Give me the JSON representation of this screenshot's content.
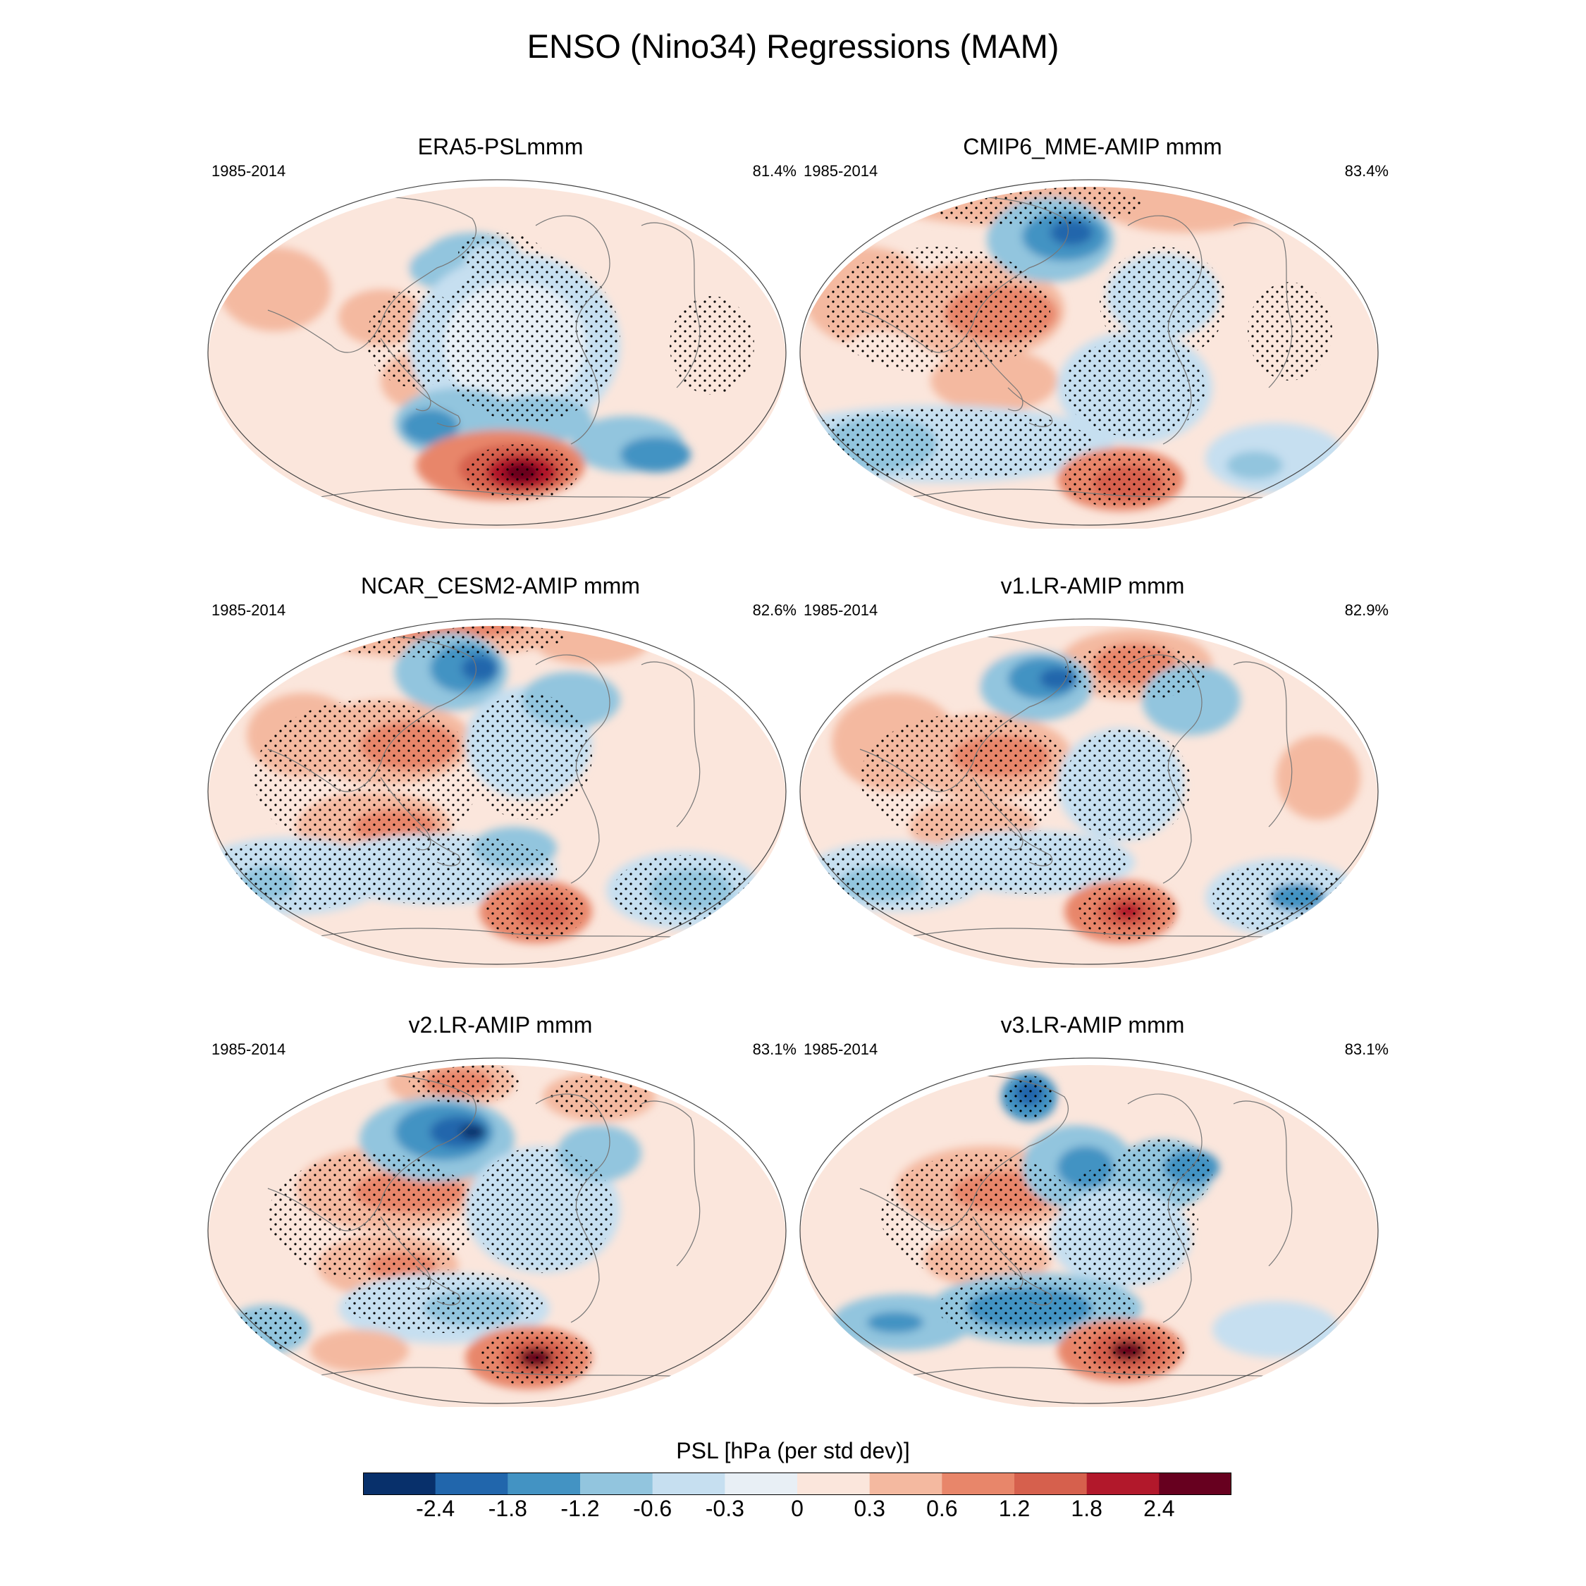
{
  "title": "ENSO (Nino34) Regressions (MAM)",
  "panels": [
    {
      "title": "ERA5-PSLmmm",
      "years": "1985-2014",
      "pct": "81.4%"
    },
    {
      "title": "CMIP6_MME-AMIP  mmm",
      "years": "1985-2014",
      "pct": "83.4%"
    },
    {
      "title": "NCAR_CESM2-AMIP  mmm",
      "years": "1985-2014",
      "pct": "82.6%"
    },
    {
      "title": "v1.LR-AMIP  mmm",
      "years": "1985-2014",
      "pct": "82.9%"
    },
    {
      "title": "v2.LR-AMIP  mmm",
      "years": "1985-2014",
      "pct": "83.1%"
    },
    {
      "title": "v3.LR-AMIP  mmm",
      "years": "1985-2014",
      "pct": "83.1%"
    }
  ],
  "colorbar": {
    "title": "PSL [hPa (per std dev)]",
    "labels": [
      "-2.4",
      "-1.8",
      "-1.2",
      "-0.6",
      "-0.3",
      "0",
      "0.3",
      "0.6",
      "1.2",
      "1.8",
      "2.4"
    ],
    "colors": [
      "#08306b",
      "#2166ac",
      "#4393c3",
      "#92c5de",
      "#c6dff0",
      "#e8eff5",
      "#fbe6dc",
      "#f4b9a0",
      "#e8866a",
      "#d6604d",
      "#b2182b",
      "#67001f"
    ]
  }
}
